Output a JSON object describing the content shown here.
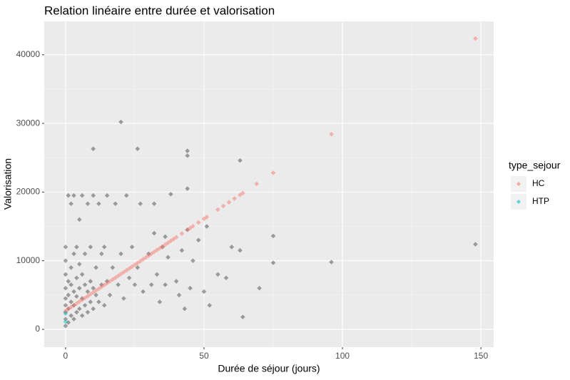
{
  "chart_data": {
    "type": "scatter",
    "title": "Relation linéaire entre durée et valorisation",
    "x_label": "Durée de séjour (jours)",
    "y_label": "Valorisation",
    "xlim": [
      -7.7,
      154.6
    ],
    "ylim": [
      -2600,
      44860
    ],
    "xticks": [
      0,
      50,
      100,
      150
    ],
    "yticks": [
      0,
      10000,
      20000,
      30000,
      40000
    ],
    "grid": true,
    "legend_title": "type_sejour",
    "legend_position": "right",
    "points": {
      "color": "#000000",
      "x": [
        0,
        0,
        0,
        0,
        0,
        0,
        0,
        0,
        0,
        1,
        1,
        1,
        1,
        1,
        2,
        2,
        2,
        2,
        2,
        3,
        3,
        3,
        3,
        3,
        4,
        4,
        4,
        4,
        5,
        5,
        5,
        5,
        6,
        6,
        6,
        6,
        7,
        7,
        7,
        8,
        8,
        8,
        9,
        9,
        9,
        10,
        10,
        10,
        11,
        11,
        12,
        12,
        13,
        13,
        14,
        14,
        15,
        15,
        16,
        17,
        18,
        19,
        20,
        21,
        22,
        23,
        24,
        25,
        26,
        27,
        28,
        30,
        31,
        32,
        33,
        34,
        35,
        36,
        37,
        38,
        40,
        41,
        42,
        43,
        44,
        45,
        46,
        48,
        50,
        52,
        55,
        58,
        60,
        63,
        64,
        70,
        75,
        75,
        96,
        148,
        20,
        10,
        26,
        44,
        44,
        63,
        51,
        32,
        36,
        44
      ],
      "y": [
        500,
        1500,
        2500,
        3500,
        4500,
        6000,
        8000,
        10000,
        12000,
        1000,
        3000,
        5000,
        7000,
        19500,
        2000,
        4000,
        6500,
        9000,
        18300,
        1500,
        3500,
        5500,
        11000,
        19500,
        2500,
        4800,
        7500,
        12000,
        3000,
        6000,
        9500,
        16000,
        2000,
        4500,
        8000,
        19500,
        3500,
        6500,
        11000,
        2500,
        5500,
        18300,
        4000,
        7000,
        12000,
        3000,
        6000,
        19500,
        5000,
        9000,
        4000,
        18300,
        6500,
        11000,
        3500,
        12000,
        7000,
        19500,
        5000,
        9000,
        18300,
        6500,
        11000,
        4500,
        19500,
        7500,
        12000,
        6500,
        9000,
        18300,
        5500,
        11000,
        6500,
        18300,
        8000,
        4000,
        12000,
        6500,
        10500,
        19700,
        7000,
        5000,
        11500,
        3000,
        20500,
        6000,
        10000,
        13000,
        5500,
        3500,
        8000,
        7500,
        12000,
        11500,
        1800,
        6000,
        13600,
        9700,
        9800,
        12400,
        30200,
        26300,
        26300,
        26000,
        25300,
        24600,
        15000,
        14000,
        13500,
        14500
      ]
    },
    "series": [
      {
        "name": "HC",
        "color": "#f8766d",
        "x": [
          0,
          1,
          2,
          3,
          4,
          5,
          6,
          7,
          8,
          9,
          10,
          11,
          12,
          13,
          14,
          15,
          16,
          17,
          18,
          19,
          20,
          21,
          22,
          23,
          24,
          25,
          26,
          27,
          28,
          29,
          30,
          31,
          32,
          33,
          34,
          35,
          36,
          37,
          38,
          39,
          40,
          42,
          44,
          45,
          46,
          48,
          50,
          51,
          55,
          57,
          59,
          61,
          63,
          64,
          69,
          75,
          96,
          148
        ],
        "values": [
          2700,
          2968,
          3236,
          3504,
          3772,
          4040,
          4308,
          4576,
          4844,
          5112,
          5380,
          5648,
          5916,
          6184,
          6452,
          6720,
          6988,
          7256,
          7524,
          7792,
          8060,
          8328,
          8596,
          8864,
          9132,
          9400,
          9668,
          9936,
          10204,
          10472,
          10740,
          11008,
          11276,
          11544,
          11812,
          12080,
          12348,
          12616,
          12884,
          13152,
          13420,
          13956,
          14492,
          14760,
          15028,
          15564,
          16100,
          16368,
          17440,
          17976,
          18512,
          19048,
          19584,
          19852,
          21192,
          22800,
          28428,
          42364
        ]
      },
      {
        "name": "HTP",
        "color": "#00bfc4",
        "x": [
          0,
          0
        ],
        "values": [
          1100,
          2300
        ]
      }
    ]
  }
}
